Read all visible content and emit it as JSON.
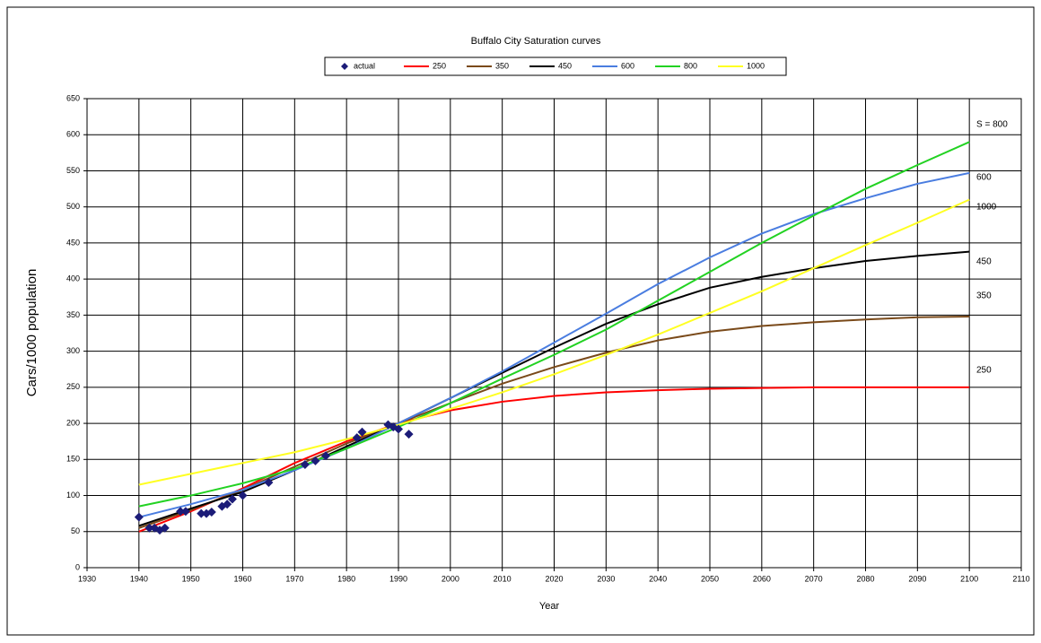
{
  "chart_data": {
    "type": "line",
    "title": "Buffalo City Saturation curves",
    "x_label": "Year",
    "y_label": "Cars/1000 population",
    "x": [
      1940,
      1950,
      1960,
      1970,
      1980,
      1990,
      2000,
      2010,
      2020,
      2030,
      2040,
      2050,
      2060,
      2070,
      2080,
      2090,
      2100
    ],
    "series": [
      {
        "name": "actual",
        "color": "#1c1c78",
        "mode": "markers",
        "x": [
          1940,
          1942,
          1943,
          1944,
          1945,
          1948,
          1949,
          1952,
          1953,
          1954,
          1956,
          1957,
          1958,
          1960,
          1965,
          1972,
          1974,
          1976,
          1982,
          1983,
          1988,
          1989,
          1990,
          1992
        ],
        "values": [
          70,
          55,
          55,
          52,
          55,
          78,
          78,
          75,
          75,
          77,
          85,
          88,
          95,
          100,
          118,
          143,
          148,
          155,
          180,
          188,
          198,
          195,
          192,
          185
        ]
      },
      {
        "name": "250",
        "color": "#ff0000",
        "values": [
          50,
          78,
          110,
          145,
          175,
          200,
          218,
          230,
          238,
          243,
          246,
          248,
          249,
          250,
          250,
          250,
          250
        ]
      },
      {
        "name": "350",
        "color": "#7a4a1a",
        "values": [
          55,
          80,
          108,
          140,
          172,
          200,
          228,
          255,
          278,
          298,
          315,
          327,
          335,
          340,
          344,
          347,
          348
        ]
      },
      {
        "name": "450",
        "color": "#000000",
        "values": [
          58,
          82,
          105,
          135,
          168,
          200,
          235,
          270,
          305,
          338,
          365,
          388,
          403,
          415,
          425,
          432,
          438
        ]
      },
      {
        "name": "600",
        "color": "#4a7de0",
        "values": [
          70,
          88,
          108,
          135,
          165,
          200,
          235,
          272,
          312,
          352,
          393,
          430,
          463,
          490,
          512,
          532,
          547
        ]
      },
      {
        "name": "800",
        "color": "#22d222",
        "values": [
          85,
          100,
          117,
          137,
          165,
          195,
          228,
          262,
          295,
          330,
          370,
          410,
          450,
          488,
          525,
          558,
          590
        ]
      },
      {
        "name": "1000",
        "color": "#ffff22",
        "values": [
          115,
          130,
          145,
          160,
          178,
          198,
          220,
          243,
          268,
          295,
          323,
          353,
          383,
          415,
          447,
          478,
          510
        ]
      }
    ],
    "annotations": [
      "S = 800",
      "600",
      "1000",
      "450",
      "350",
      "250"
    ],
    "xlim": [
      1930,
      2110
    ],
    "xticks": [
      1930,
      1940,
      1950,
      1960,
      1970,
      1980,
      1990,
      2000,
      2010,
      2020,
      2030,
      2040,
      2050,
      2060,
      2070,
      2080,
      2090,
      2100,
      2110
    ],
    "ylim": [
      0,
      650
    ],
    "yticks": [
      0,
      50,
      100,
      150,
      200,
      250,
      300,
      350,
      400,
      450,
      500,
      550,
      600,
      650
    ],
    "grid": true,
    "legend": "top"
  }
}
